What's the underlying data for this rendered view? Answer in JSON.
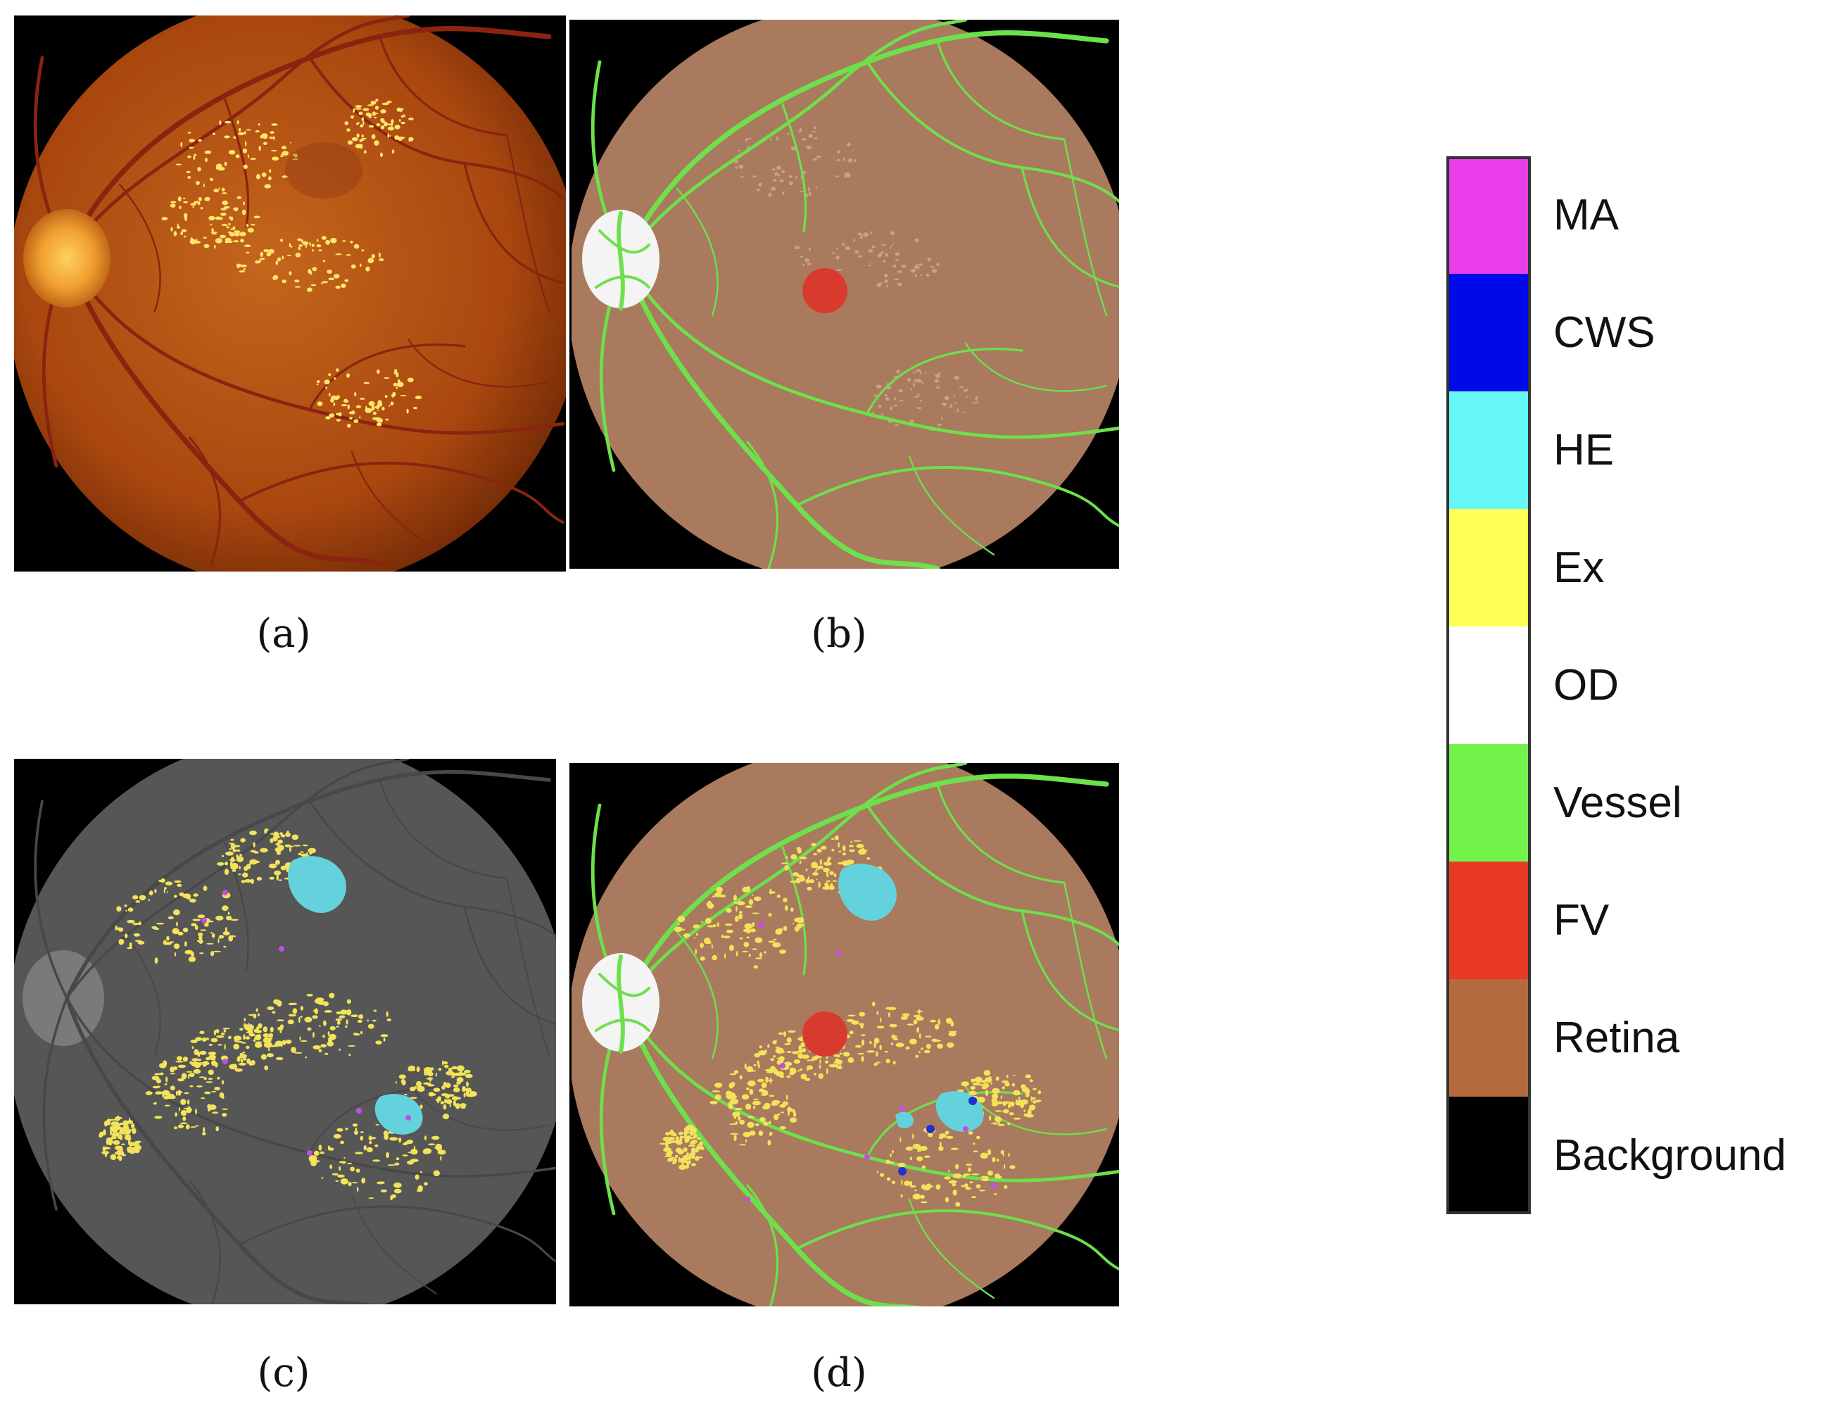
{
  "captions": {
    "a": "(a)",
    "b": "(b)",
    "c": "(c)",
    "d": "(d)"
  },
  "legend": [
    {
      "label": "MA",
      "color": "#e83de8"
    },
    {
      "label": "CWS",
      "color": "#0009e8"
    },
    {
      "label": "HE",
      "color": "#66f8f8"
    },
    {
      "label": "Ex",
      "color": "#ffff55"
    },
    {
      "label": "OD",
      "color": "#ffffff"
    },
    {
      "label": "Vessel",
      "color": "#72f24a"
    },
    {
      "label": "FV",
      "color": "#e83a22"
    },
    {
      "label": "Retina",
      "color": "#b46a3c"
    },
    {
      "label": "Background",
      "color": "#000000"
    }
  ],
  "colors": {
    "fundus_center": "#c2641a",
    "fundus_edge": "#7a2c08",
    "segmented_retina": "#a97a5d",
    "gray_fundus": "#5a5a5a",
    "vessel_natural": "#8a2410",
    "vessel_seg": "#6ee04c",
    "exudate_natural": "#ffe66a",
    "exudate_seg": "#f2e35a",
    "hemorrhage": "#64d2dc",
    "ma": "#c050e0",
    "cws": "#2030d0",
    "fovea": "#d93a2e",
    "optic_disc_natural": "#f0a030",
    "optic_disc_seg": "#f4f4f4"
  }
}
